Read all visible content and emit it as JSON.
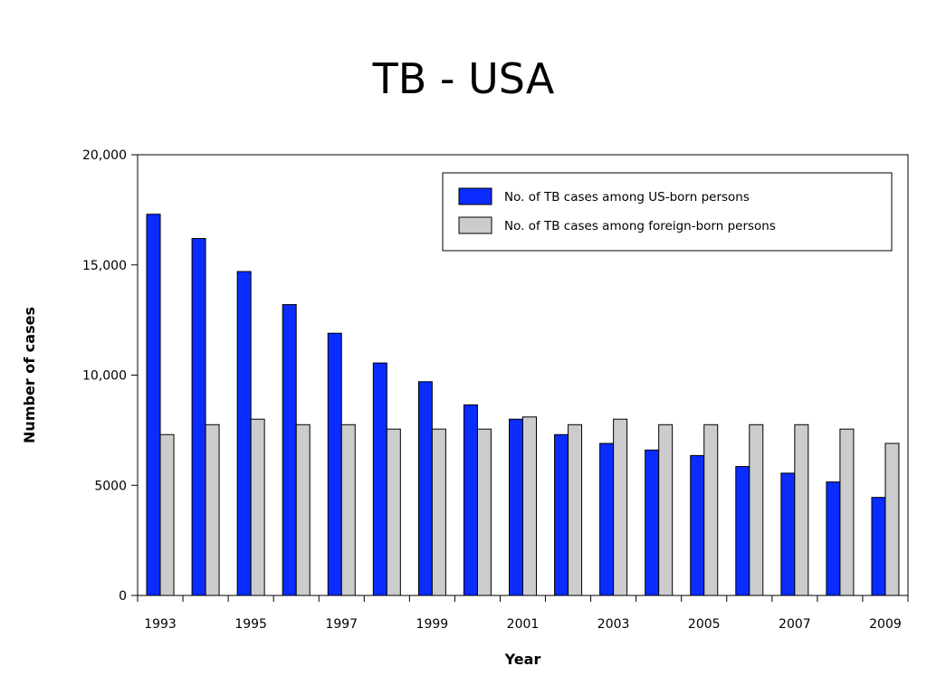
{
  "slide": {
    "title": "TB - USA"
  },
  "chart_data": {
    "type": "bar",
    "categories": [
      "1993",
      "1994",
      "1995",
      "1996",
      "1997",
      "1998",
      "1999",
      "2000",
      "2001",
      "2002",
      "2003",
      "2004",
      "2005",
      "2006",
      "2007",
      "2008",
      "2009"
    ],
    "x_tick_labels": [
      "1993",
      "1995",
      "1997",
      "1999",
      "2001",
      "2003",
      "2005",
      "2007",
      "2009"
    ],
    "series": [
      {
        "name": "No. of TB cases among US-born persons",
        "color": "#0a2cff",
        "values": [
          17300,
          16200,
          14700,
          13200,
          11900,
          10550,
          9700,
          8650,
          8000,
          7300,
          6900,
          6600,
          6350,
          5850,
          5550,
          5150,
          4450
        ]
      },
      {
        "name": "No. of TB cases among foreign-born persons",
        "color": "#cccccc",
        "values": [
          7300,
          7750,
          8000,
          7750,
          7750,
          7550,
          7550,
          7550,
          8100,
          7750,
          8000,
          7750,
          7750,
          7750,
          7750,
          7550,
          6900
        ]
      }
    ],
    "xlabel": "Year",
    "ylabel": "Number of cases",
    "ylim": [
      0,
      20000
    ],
    "y_ticks": [
      0,
      5000,
      10000,
      15000,
      20000
    ],
    "y_tick_labels": [
      "0",
      "5000",
      "10,000",
      "15,000",
      "20,000"
    ],
    "grid": false,
    "legend_position": "top-right"
  }
}
